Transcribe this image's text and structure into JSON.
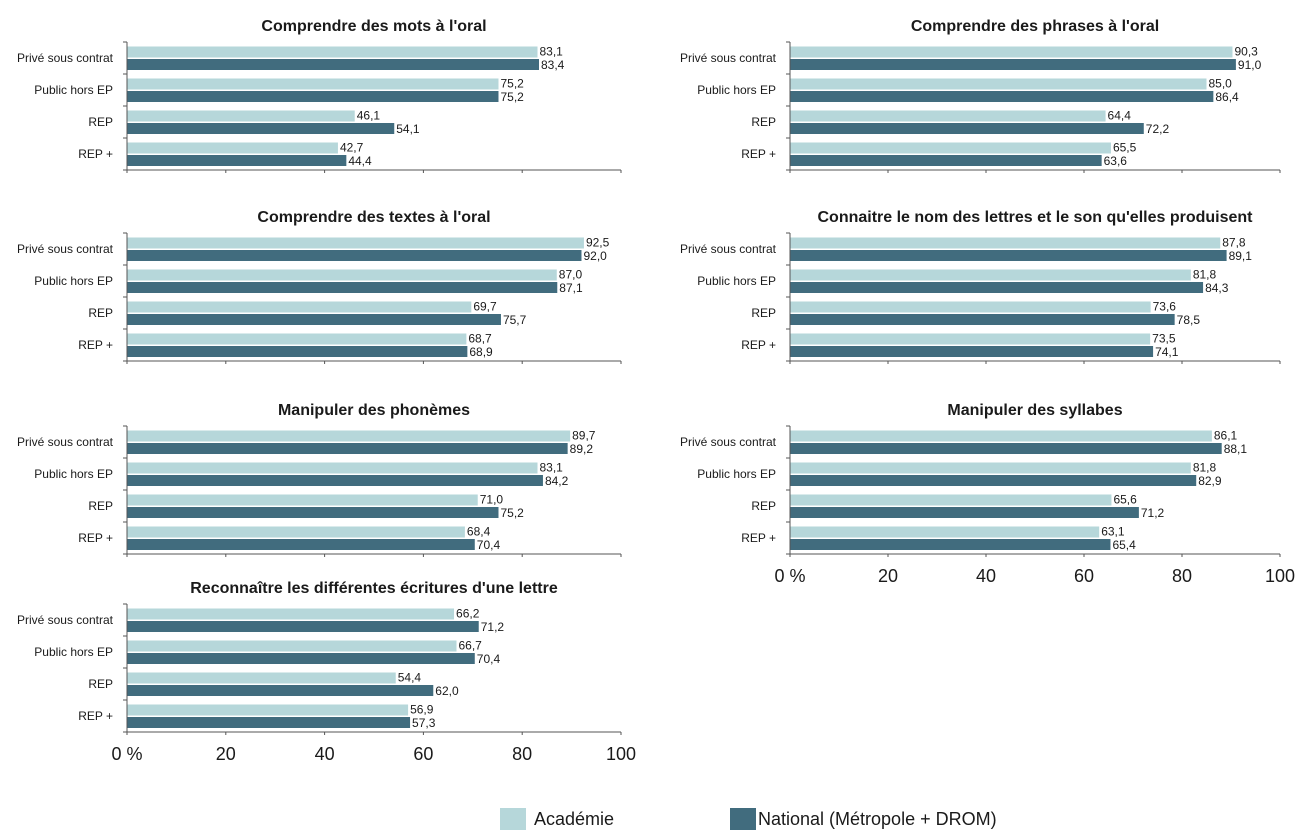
{
  "colors": {
    "academie": "#b6d7da",
    "national": "#416c7e",
    "axis": "#555555"
  },
  "legend": {
    "academie_label": "Académie",
    "national_label": "National (Métropole + DROM)"
  },
  "chart_data": [
    {
      "type": "bar",
      "title": "Comprendre des mots à l'oral",
      "categories": [
        "Privé sous contrat",
        "Public hors EP",
        "REP",
        "REP +"
      ],
      "series": [
        {
          "name": "Académie",
          "values": [
            83.1,
            75.2,
            46.1,
            42.7
          ],
          "labels": [
            "83,1",
            "75,2",
            "46,1",
            "42,7"
          ]
        },
        {
          "name": "National (Métropole + DROM)",
          "values": [
            83.4,
            75.2,
            54.1,
            44.4
          ],
          "labels": [
            "83,4",
            "75,2",
            "54,1",
            "44,4"
          ]
        }
      ],
      "xlim": [
        0,
        100
      ]
    },
    {
      "type": "bar",
      "title": "Comprendre des phrases à l'oral",
      "categories": [
        "Privé sous contrat",
        "Public hors EP",
        "REP",
        "REP +"
      ],
      "series": [
        {
          "name": "Académie",
          "values": [
            90.3,
            85.0,
            64.4,
            65.5
          ],
          "labels": [
            "90,3",
            "85,0",
            "64,4",
            "65,5"
          ]
        },
        {
          "name": "National (Métropole + DROM)",
          "values": [
            91.0,
            86.4,
            72.2,
            63.6
          ],
          "labels": [
            "91,0",
            "86,4",
            "72,2",
            "63,6"
          ]
        }
      ],
      "xlim": [
        0,
        100
      ]
    },
    {
      "type": "bar",
      "title": "Comprendre des textes à l'oral",
      "categories": [
        "Privé sous contrat",
        "Public hors EP",
        "REP",
        "REP +"
      ],
      "series": [
        {
          "name": "Académie",
          "values": [
            92.5,
            87.0,
            69.7,
            68.7
          ],
          "labels": [
            "92,5",
            "87,0",
            "69,7",
            "68,7"
          ]
        },
        {
          "name": "National (Métropole + DROM)",
          "values": [
            92.0,
            87.1,
            75.7,
            68.9
          ],
          "labels": [
            "92,0",
            "87,1",
            "75,7",
            "68,9"
          ]
        }
      ],
      "xlim": [
        0,
        100
      ]
    },
    {
      "type": "bar",
      "title": "Connaitre le nom des lettres et le son qu'elles produisent",
      "categories": [
        "Privé sous contrat",
        "Public hors EP",
        "REP",
        "REP +"
      ],
      "series": [
        {
          "name": "Académie",
          "values": [
            87.8,
            81.8,
            73.6,
            73.5
          ],
          "labels": [
            "87,8",
            "81,8",
            "73,6",
            "73,5"
          ]
        },
        {
          "name": "National (Métropole + DROM)",
          "values": [
            89.1,
            84.3,
            78.5,
            74.1
          ],
          "labels": [
            "89,1",
            "84,3",
            "78,5",
            "74,1"
          ]
        }
      ],
      "xlim": [
        0,
        100
      ]
    },
    {
      "type": "bar",
      "title": "Manipuler des phonèmes",
      "categories": [
        "Privé sous contrat",
        "Public hors EP",
        "REP",
        "REP +"
      ],
      "series": [
        {
          "name": "Académie",
          "values": [
            89.7,
            83.1,
            71.0,
            68.4
          ],
          "labels": [
            "89,7",
            "83,1",
            "71,0",
            "68,4"
          ]
        },
        {
          "name": "National (Métropole + DROM)",
          "values": [
            89.2,
            84.2,
            75.2,
            70.4
          ],
          "labels": [
            "89,2",
            "84,2",
            "75,2",
            "70,4"
          ]
        }
      ],
      "xlim": [
        0,
        100
      ]
    },
    {
      "type": "bar",
      "title": "Manipuler des syllabes",
      "categories": [
        "Privé sous contrat",
        "Public hors EP",
        "REP",
        "REP +"
      ],
      "series": [
        {
          "name": "Académie",
          "values": [
            86.1,
            81.8,
            65.6,
            63.1
          ],
          "labels": [
            "86,1",
            "81,8",
            "65,6",
            "63,1"
          ]
        },
        {
          "name": "National (Métropole + DROM)",
          "values": [
            88.1,
            82.9,
            71.2,
            65.4
          ],
          "labels": [
            "88,1",
            "82,9",
            "71,2",
            "65,4"
          ]
        }
      ],
      "xlim": [
        0,
        100
      ],
      "xticks": [
        "0 %",
        "20",
        "40",
        "60",
        "80",
        "100"
      ]
    },
    {
      "type": "bar",
      "title": "Reconnaître les différentes écritures d'une lettre",
      "categories": [
        "Privé sous contrat",
        "Public hors EP",
        "REP",
        "REP +"
      ],
      "series": [
        {
          "name": "Académie",
          "values": [
            66.2,
            66.7,
            54.4,
            56.9
          ],
          "labels": [
            "66,2",
            "66,7",
            "54,4",
            "56,9"
          ]
        },
        {
          "name": "National (Métropole + DROM)",
          "values": [
            71.2,
            70.4,
            62.0,
            57.3
          ],
          "labels": [
            "71,2",
            "70,4",
            "62,0",
            "57,3"
          ]
        }
      ],
      "xlim": [
        0,
        100
      ],
      "xticks": [
        "0 %",
        "20",
        "40",
        "60",
        "80",
        "100"
      ]
    }
  ]
}
